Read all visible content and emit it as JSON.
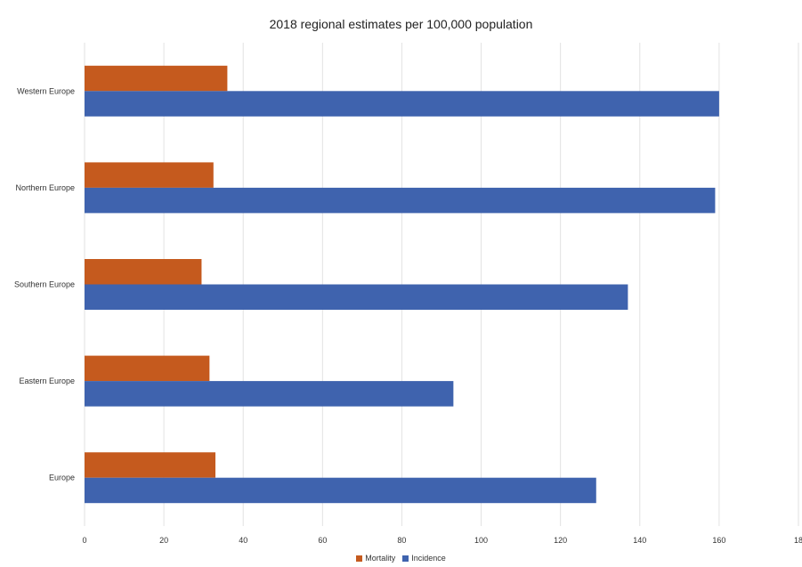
{
  "chart_data": {
    "type": "bar",
    "orientation": "horizontal",
    "title": "2018 regional estimates per 100,000 population",
    "xlabel": "",
    "ylabel": "",
    "categories": [
      "Western Europe",
      "Northern Europe",
      "Southern Europe",
      "Eastern Europe",
      "Europe"
    ],
    "series": [
      {
        "name": "Mortality",
        "color": "#c55a1e",
        "values": [
          36,
          32.5,
          29.5,
          31.5,
          33
        ]
      },
      {
        "name": "Incidence",
        "color": "#3f63ae",
        "values": [
          160,
          159,
          137,
          93,
          129
        ]
      }
    ],
    "xlim": [
      0,
      180
    ],
    "xticks": [
      "0",
      "20",
      "40",
      "60",
      "80",
      "100",
      "120",
      "140",
      "160",
      "18"
    ],
    "grid": "vertical",
    "legend": "bottom"
  }
}
